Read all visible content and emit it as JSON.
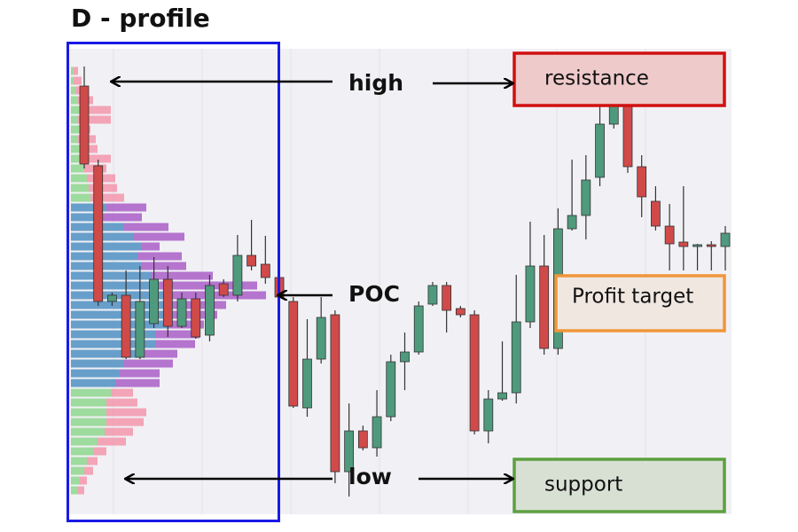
{
  "chart_data": {
    "type": "candlestick",
    "title": "D - profile",
    "ylim": [
      0,
      105
    ],
    "up_color": "#4f9a7c",
    "down_color": "#d04a4a",
    "candles": {
      "open": [
        96.6,
        78.6,
        48,
        49.4,
        35.4,
        43,
        53,
        42.4,
        48.6,
        40.4,
        52,
        49.4,
        58.4,
        56.4,
        53.4,
        48,
        24,
        35,
        45,
        9.6,
        18.8,
        15,
        22,
        34.4,
        36.6,
        47.4,
        51.6,
        46.4,
        45,
        18.8,
        26,
        27.4,
        43.4,
        56,
        37.4,
        64.4,
        67.4,
        76,
        88,
        94.6,
        78.4,
        70.6,
        65,
        61.4,
        60.4,
        60.8,
        60.4
      ],
      "close": [
        79,
        48,
        49.4,
        35.4,
        48,
        53,
        42.4,
        48.6,
        40,
        51.6,
        49.4,
        58.4,
        56,
        53.4,
        49,
        24.4,
        35,
        44.4,
        9.6,
        18.8,
        15,
        22,
        34.4,
        36.6,
        47,
        51.6,
        46,
        45,
        18.8,
        26,
        27.4,
        43.4,
        56,
        37.4,
        64.4,
        67.4,
        75.4,
        88,
        94.6,
        78.4,
        71.6,
        65,
        61,
        60.4,
        60.8,
        60.4,
        63.4
      ],
      "high": [
        101,
        80,
        50,
        55,
        56,
        58,
        56,
        50,
        50,
        54,
        53,
        63,
        66.4,
        62.8,
        54,
        49,
        44,
        49,
        46,
        25,
        20,
        28,
        36,
        41,
        48,
        52.4,
        52.4,
        47,
        46,
        28,
        39,
        54,
        66,
        63,
        69,
        80,
        81,
        92,
        100,
        96,
        81,
        74,
        70,
        74,
        61,
        61.6,
        65
      ],
      "low": [
        78,
        47,
        47,
        35,
        35,
        42,
        40,
        42,
        39.6,
        39,
        49,
        48,
        55,
        52,
        48.4,
        24,
        22,
        34,
        7,
        4,
        14.4,
        13,
        21,
        28,
        36,
        47,
        41,
        44.4,
        18,
        16,
        25.6,
        25,
        42,
        36,
        36,
        64,
        62,
        74,
        87,
        77,
        67,
        64,
        55,
        55,
        55,
        55,
        55
      ]
    },
    "profile": {
      "xlim": [
        0,
        235
      ],
      "prices": [
        100,
        97.8,
        95.6,
        93.4,
        91.2,
        89,
        86.8,
        84.6,
        82.4,
        80.2,
        78,
        75.8,
        73.6,
        71.4,
        69.2,
        67,
        64.8,
        62.6,
        60.4,
        58.2,
        56,
        53.8,
        51.6,
        49.4,
        47.2,
        45,
        42.8,
        40.6,
        38.4,
        36.2,
        34,
        31.8,
        29.6,
        27.4,
        25.2,
        23,
        20.8,
        18.6,
        16.4,
        14.2,
        12,
        9.8,
        7.6,
        5.4
      ],
      "a": [
        3,
        3,
        5,
        8,
        10,
        8,
        10,
        8,
        10,
        12,
        15,
        18,
        20,
        22,
        40,
        35,
        60,
        70,
        80,
        75,
        80,
        90,
        100,
        110,
        115,
        115,
        110,
        95,
        95,
        80,
        60,
        55,
        50,
        45,
        40,
        40,
        40,
        38,
        30,
        25,
        18,
        15,
        10,
        8
      ],
      "b": [
        8,
        12,
        20,
        25,
        45,
        45,
        22,
        28,
        30,
        45,
        40,
        50,
        52,
        60,
        85,
        80,
        110,
        128,
        100,
        125,
        130,
        160,
        210,
        220,
        175,
        165,
        150,
        145,
        140,
        120,
        115,
        100,
        100,
        70,
        75,
        85,
        82,
        70,
        62,
        40,
        30,
        25,
        18,
        15
      ],
      "value_area": {
        "from": 14,
        "to": 32
      },
      "a_color": "#8ee59a",
      "a_value_color": "#5aa7c9",
      "b_color": "#f48aa2",
      "b_value_color": "#a04ac0"
    },
    "annotations": {
      "high": "high",
      "poc": "POC",
      "low": "low",
      "resistance": "resistance",
      "profit_target": "Profit target",
      "support": "support"
    }
  }
}
